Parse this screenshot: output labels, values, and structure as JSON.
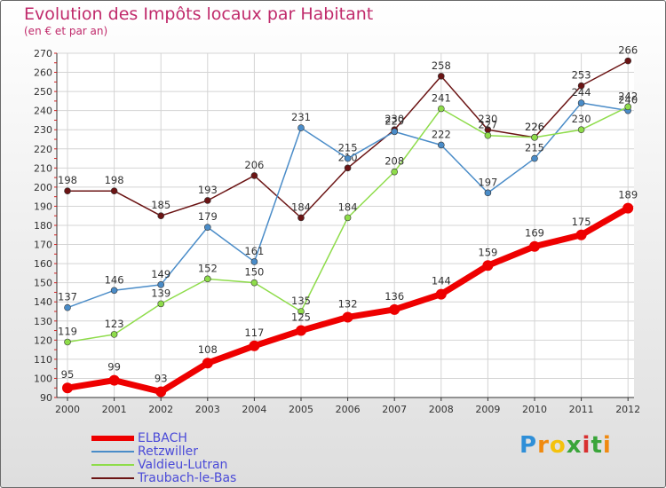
{
  "header": {
    "title": "Evolution des Impôts locaux par Habitant",
    "subtitle": "(en € et par an)"
  },
  "chart_data": {
    "type": "line",
    "title": "Evolution des Impôts locaux par Habitant",
    "subtitle": "(en € et par an)",
    "xlabel": "",
    "ylabel": "",
    "x": [
      "2000",
      "2001",
      "2002",
      "2003",
      "2004",
      "2005",
      "2006",
      "2007",
      "2008",
      "2009",
      "2010",
      "2011",
      "2012"
    ],
    "ylim": [
      90,
      270
    ],
    "yticks": [
      90,
      100,
      110,
      120,
      130,
      140,
      150,
      160,
      170,
      180,
      190,
      200,
      210,
      220,
      230,
      240,
      250,
      260,
      270
    ],
    "grid": true,
    "legend_position": "bottom-left",
    "series": [
      {
        "name": "ELBACH",
        "color": "#ee0000",
        "values": [
          95,
          99,
          93,
          108,
          117,
          125,
          132,
          136,
          144,
          159,
          169,
          175,
          189
        ]
      },
      {
        "name": "Retzwiller",
        "color": "#4a8cc8",
        "values": [
          137,
          146,
          149,
          179,
          161,
          231,
          215,
          229,
          222,
          197,
          215,
          244,
          240
        ]
      },
      {
        "name": "Valdieu-Lutran",
        "color": "#8edc4a",
        "values": [
          119,
          123,
          139,
          152,
          150,
          135,
          184,
          208,
          241,
          227,
          226,
          230,
          242
        ]
      },
      {
        "name": "Traubach-le-Bas",
        "color": "#6b1414",
        "values": [
          198,
          198,
          185,
          193,
          206,
          184,
          210,
          230,
          258,
          230,
          226,
          253,
          266
        ]
      }
    ]
  },
  "legend": {
    "items": [
      {
        "label": "ELBACH"
      },
      {
        "label": "Retzwiller"
      },
      {
        "label": "Valdieu-Lutran"
      },
      {
        "label": "Traubach-le-Bas"
      }
    ]
  },
  "brand": {
    "letters": [
      "P",
      "r",
      "o",
      "x",
      "i",
      "t",
      "i"
    ],
    "colors": [
      "#2f8fd8",
      "#f08a10",
      "#f4c20d",
      "#3aa53a",
      "#d83030",
      "#3aa53a",
      "#f08a10"
    ]
  }
}
